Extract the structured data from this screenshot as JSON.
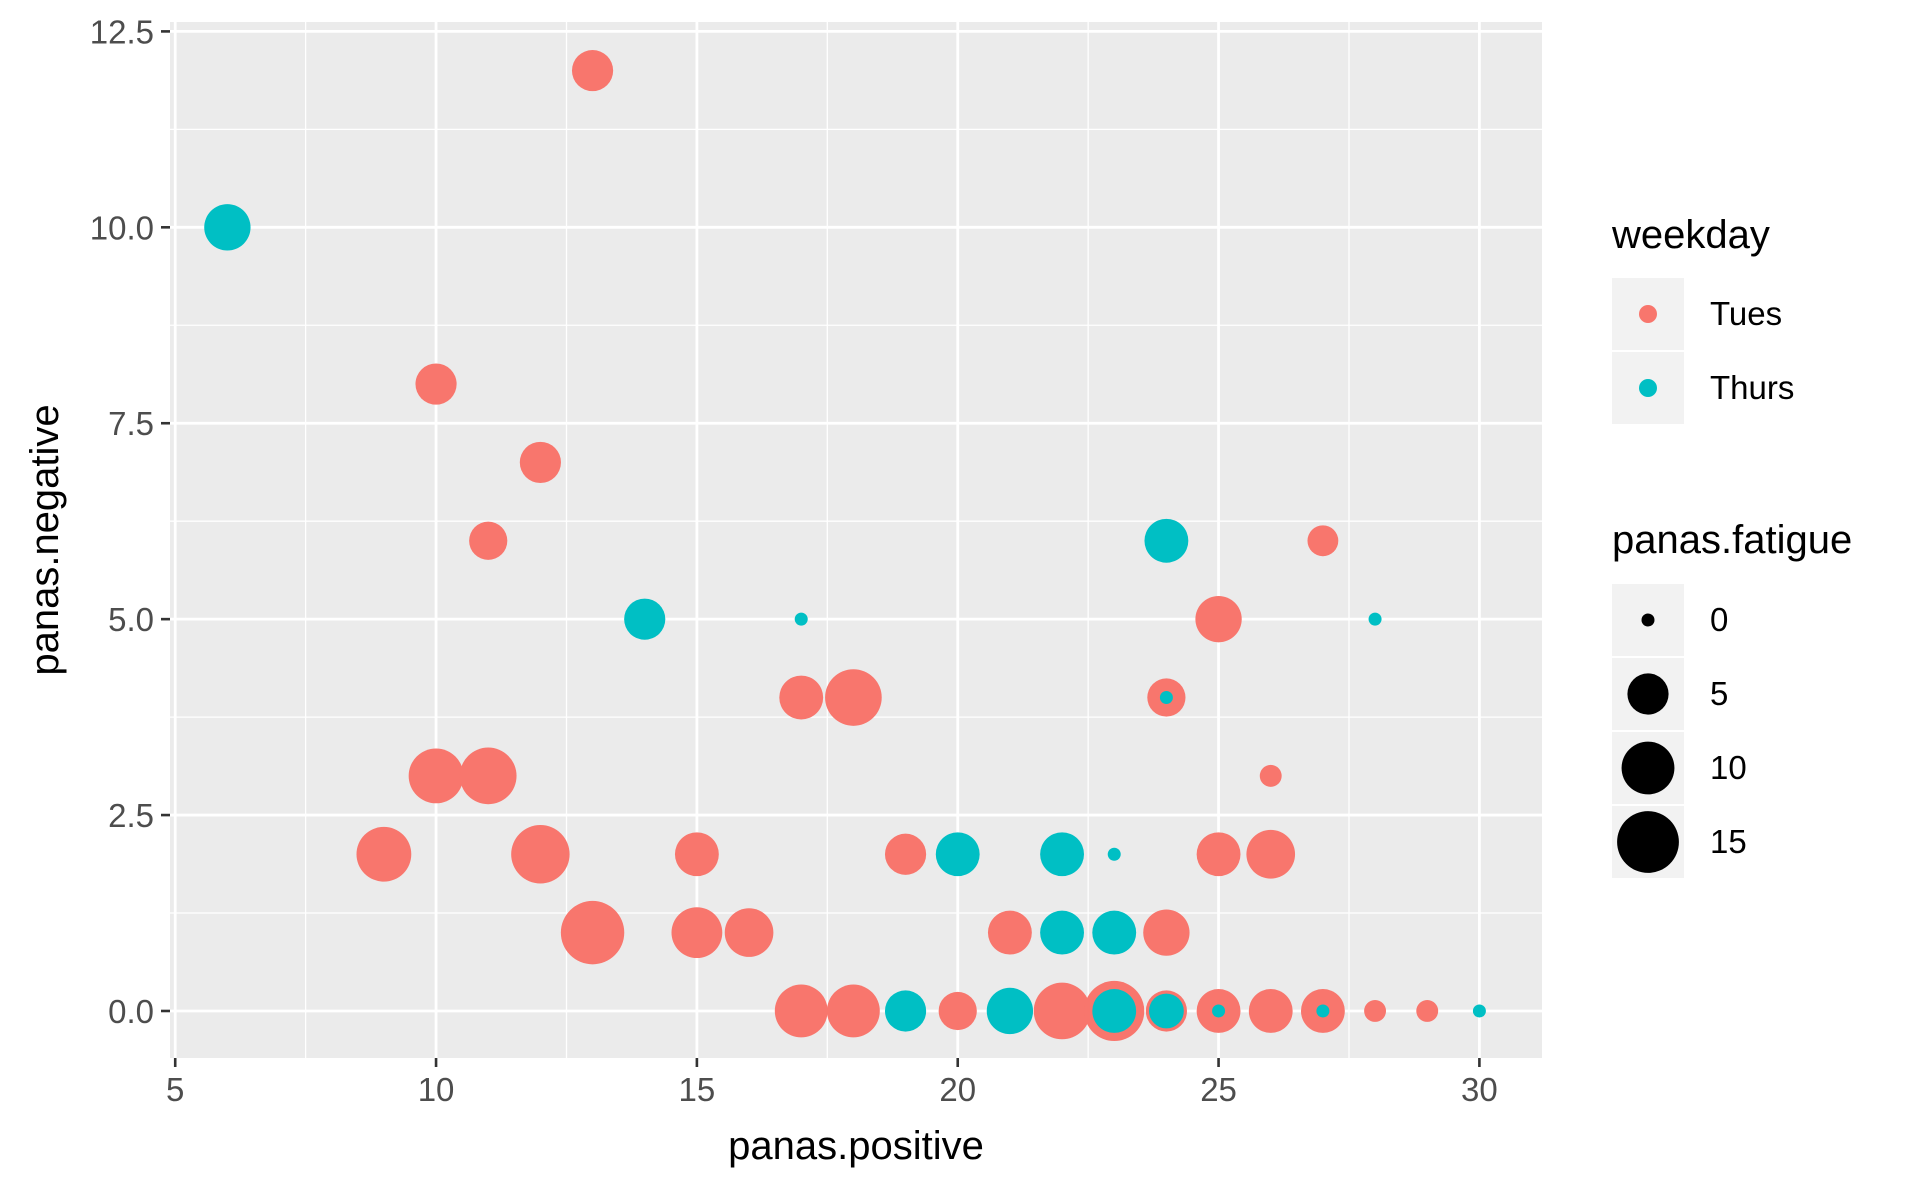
{
  "chart_data": {
    "type": "scatter",
    "xlabel": "panas.positive",
    "ylabel": "panas.negative",
    "xlim": [
      4.9,
      31.2
    ],
    "ylim": [
      -0.6,
      12.62
    ],
    "x_ticks": [
      5,
      10,
      15,
      20,
      25,
      30
    ],
    "x_tick_labels": [
      "5",
      "10",
      "15",
      "20",
      "25",
      "30"
    ],
    "y_ticks": [
      0,
      2.5,
      5,
      7.5,
      10,
      12.5
    ],
    "y_tick_labels": [
      "0.0",
      "2.5",
      "5.0",
      "7.5",
      "10.0",
      "12.5"
    ],
    "grid": true,
    "legend_position": "right",
    "color_legend": {
      "title": "weekday",
      "entries": [
        {
          "label": "Tues",
          "color": "#F8766D"
        },
        {
          "label": "Thurs",
          "color": "#00BFC4"
        }
      ]
    },
    "size_legend": {
      "title": "panas.fatigue",
      "entries": [
        {
          "label": "0",
          "value": 0
        },
        {
          "label": "5",
          "value": 5
        },
        {
          "label": "10",
          "value": 10
        },
        {
          "label": "15",
          "value": 15
        }
      ]
    },
    "series": [
      {
        "name": "Tues",
        "color": "#F8766D",
        "points": [
          {
            "x": 13,
            "y": 12,
            "fatigue": 5
          },
          {
            "x": 10,
            "y": 8,
            "fatigue": 5
          },
          {
            "x": 12,
            "y": 7,
            "fatigue": 5
          },
          {
            "x": 11,
            "y": 6,
            "fatigue": 4
          },
          {
            "x": 27,
            "y": 6,
            "fatigue": 2
          },
          {
            "x": 25,
            "y": 5,
            "fatigue": 7
          },
          {
            "x": 17,
            "y": 4,
            "fatigue": 6
          },
          {
            "x": 18,
            "y": 4,
            "fatigue": 12
          },
          {
            "x": 24,
            "y": 4,
            "fatigue": 4
          },
          {
            "x": 26,
            "y": 3,
            "fatigue": 0.5
          },
          {
            "x": 10,
            "y": 3,
            "fatigue": 11
          },
          {
            "x": 11,
            "y": 3,
            "fatigue": 12
          },
          {
            "x": 9,
            "y": 2,
            "fatigue": 11
          },
          {
            "x": 12,
            "y": 2,
            "fatigue": 13
          },
          {
            "x": 15,
            "y": 2,
            "fatigue": 6
          },
          {
            "x": 19,
            "y": 2,
            "fatigue": 5
          },
          {
            "x": 25,
            "y": 2,
            "fatigue": 6
          },
          {
            "x": 26,
            "y": 2,
            "fatigue": 8
          },
          {
            "x": 13,
            "y": 1,
            "fatigue": 16
          },
          {
            "x": 15,
            "y": 1,
            "fatigue": 9
          },
          {
            "x": 16,
            "y": 1,
            "fatigue": 8
          },
          {
            "x": 21,
            "y": 1,
            "fatigue": 6
          },
          {
            "x": 24,
            "y": 1,
            "fatigue": 7
          },
          {
            "x": 17,
            "y": 0,
            "fatigue": 10
          },
          {
            "x": 18,
            "y": 0,
            "fatigue": 10
          },
          {
            "x": 20,
            "y": 0,
            "fatigue": 4
          },
          {
            "x": 22,
            "y": 0,
            "fatigue": 12
          },
          {
            "x": 23,
            "y": 0,
            "fatigue": 14
          },
          {
            "x": 24,
            "y": 0,
            "fatigue": 5
          },
          {
            "x": 25,
            "y": 0,
            "fatigue": 6
          },
          {
            "x": 26,
            "y": 0,
            "fatigue": 6
          },
          {
            "x": 27,
            "y": 0,
            "fatigue": 6
          },
          {
            "x": 28,
            "y": 0,
            "fatigue": 0.5
          },
          {
            "x": 29,
            "y": 0,
            "fatigue": 0.5
          }
        ]
      },
      {
        "name": "Thurs",
        "color": "#00BFC4",
        "points": [
          {
            "x": 6,
            "y": 10,
            "fatigue": 7
          },
          {
            "x": 24,
            "y": 6,
            "fatigue": 6
          },
          {
            "x": 14,
            "y": 5,
            "fatigue": 5
          },
          {
            "x": 17,
            "y": 5,
            "fatigue": 0
          },
          {
            "x": 28,
            "y": 5,
            "fatigue": 0
          },
          {
            "x": 24,
            "y": 4,
            "fatigue": 0
          },
          {
            "x": 20,
            "y": 2,
            "fatigue": 6
          },
          {
            "x": 22,
            "y": 2,
            "fatigue": 6
          },
          {
            "x": 23,
            "y": 2,
            "fatigue": 0
          },
          {
            "x": 22,
            "y": 1,
            "fatigue": 6
          },
          {
            "x": 23,
            "y": 1,
            "fatigue": 6
          },
          {
            "x": 19,
            "y": 0,
            "fatigue": 5
          },
          {
            "x": 21,
            "y": 0,
            "fatigue": 7
          },
          {
            "x": 23,
            "y": 0,
            "fatigue": 6
          },
          {
            "x": 24,
            "y": 0,
            "fatigue": 3
          },
          {
            "x": 25,
            "y": 0,
            "fatigue": 0
          },
          {
            "x": 27,
            "y": 0,
            "fatigue": 0
          },
          {
            "x": 30,
            "y": 0,
            "fatigue": 0
          }
        ]
      }
    ]
  }
}
